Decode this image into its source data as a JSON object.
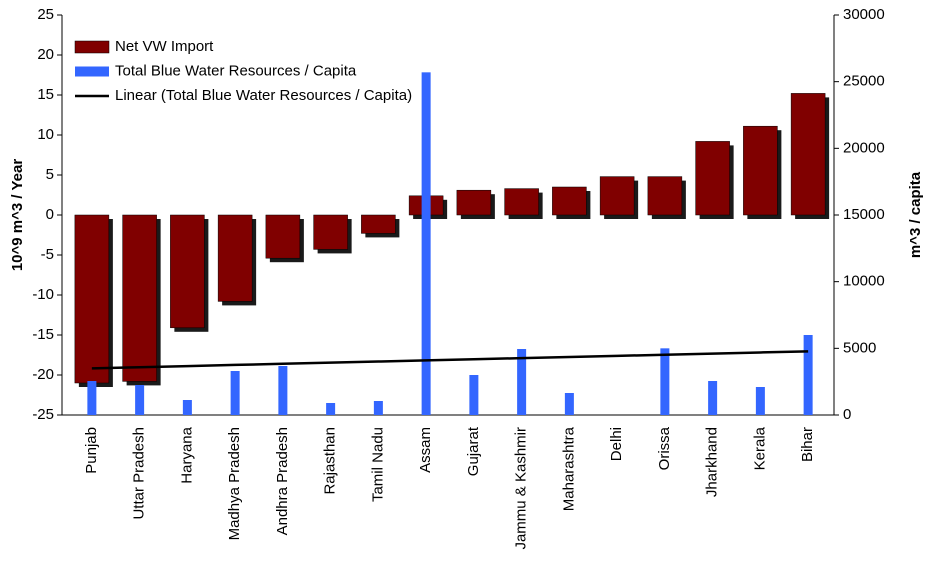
{
  "chart_data": {
    "type": "bar",
    "categories": [
      "Punjab",
      "Uttar Pradesh",
      "Haryana",
      "Madhya Pradesh",
      "Andhra Pradesh",
      "Rajasthan",
      "Tamil Nadu",
      "Assam",
      "Gujarat",
      "Jammu & Kashmir",
      "Maharashtra",
      "Delhi",
      "Orissa",
      "Jharkhand",
      "Kerala",
      "Bihar"
    ],
    "series": [
      {
        "name": "Net VW Import",
        "color": "#800000",
        "type": "bar",
        "axis": "y",
        "values": [
          -21,
          -20.8,
          -14.1,
          -10.8,
          -5.4,
          -4.3,
          -2.3,
          2.4,
          3.1,
          3.3,
          3.5,
          4.8,
          4.8,
          9.2,
          11.1,
          15.2
        ]
      },
      {
        "name": "Total Blue Water Resources / Capita",
        "color": "#3366ff",
        "type": "bar",
        "axis": "y2",
        "values": [
          2550,
          2250,
          1125,
          3300,
          3675,
          900,
          1050,
          25700,
          3000,
          4950,
          1650,
          null,
          5000,
          2550,
          2100,
          6000
        ]
      },
      {
        "name": "Linear (Total Blue Water Resources / Capita)",
        "color": "#000000",
        "type": "line",
        "axis": "y2",
        "values": [
          3500,
          3585,
          3670,
          3755,
          3840,
          3925,
          4010,
          4095,
          4180,
          4265,
          4350,
          4435,
          4520,
          4605,
          4690,
          4775
        ]
      }
    ],
    "ylabel": "10^9 m^3 / Year",
    "y2label": "m^3 / capita",
    "ylim": [
      -25,
      25
    ],
    "yticks": [
      -25,
      -20,
      -15,
      -10,
      -5,
      0,
      5,
      10,
      15,
      20,
      25
    ],
    "y2lim": [
      0,
      30000
    ],
    "y2ticks": [
      0,
      5000,
      10000,
      15000,
      20000,
      25000,
      30000
    ],
    "legend": "upper left"
  }
}
